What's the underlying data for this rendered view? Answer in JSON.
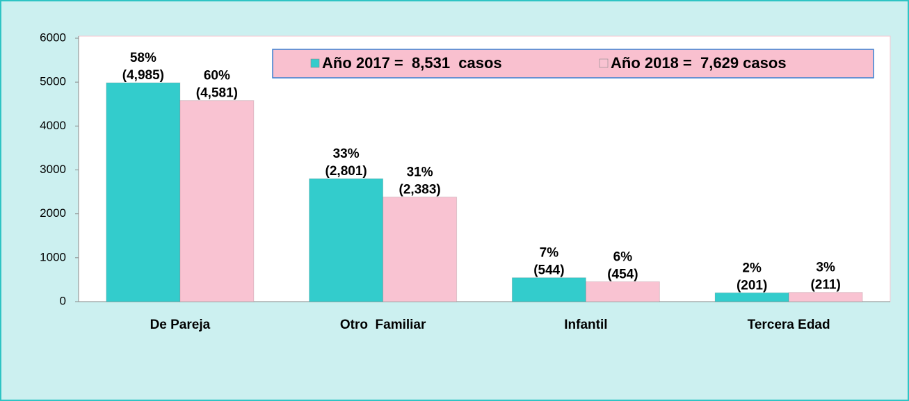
{
  "chart_data": {
    "type": "bar",
    "categories": [
      "De Pareja",
      "Otro  Familiar",
      "Infantil",
      "Tercera Edad"
    ],
    "series": [
      {
        "name": "Año 2017 =  8,531  casos",
        "color": "#33cccc",
        "values": [
          4985,
          2801,
          544,
          201
        ],
        "value_labels": [
          "(4,985)",
          "(2,801)",
          "(544)",
          "(201)"
        ],
        "percent_labels": [
          "58%",
          "33%",
          "7%",
          "2%"
        ]
      },
      {
        "name": "Año 2018 =  7,629 casos",
        "color": "#f9c3d2",
        "values": [
          4581,
          2383,
          454,
          211
        ],
        "value_labels": [
          "(4,581)",
          "(2,383)",
          "(454)",
          "(211)"
        ],
        "percent_labels": [
          "60%",
          "31%",
          "6%",
          "3%"
        ]
      }
    ],
    "ylim": [
      0,
      6000
    ],
    "yticks": [
      0,
      1000,
      2000,
      3000,
      4000,
      5000,
      6000
    ],
    "grid": false
  }
}
